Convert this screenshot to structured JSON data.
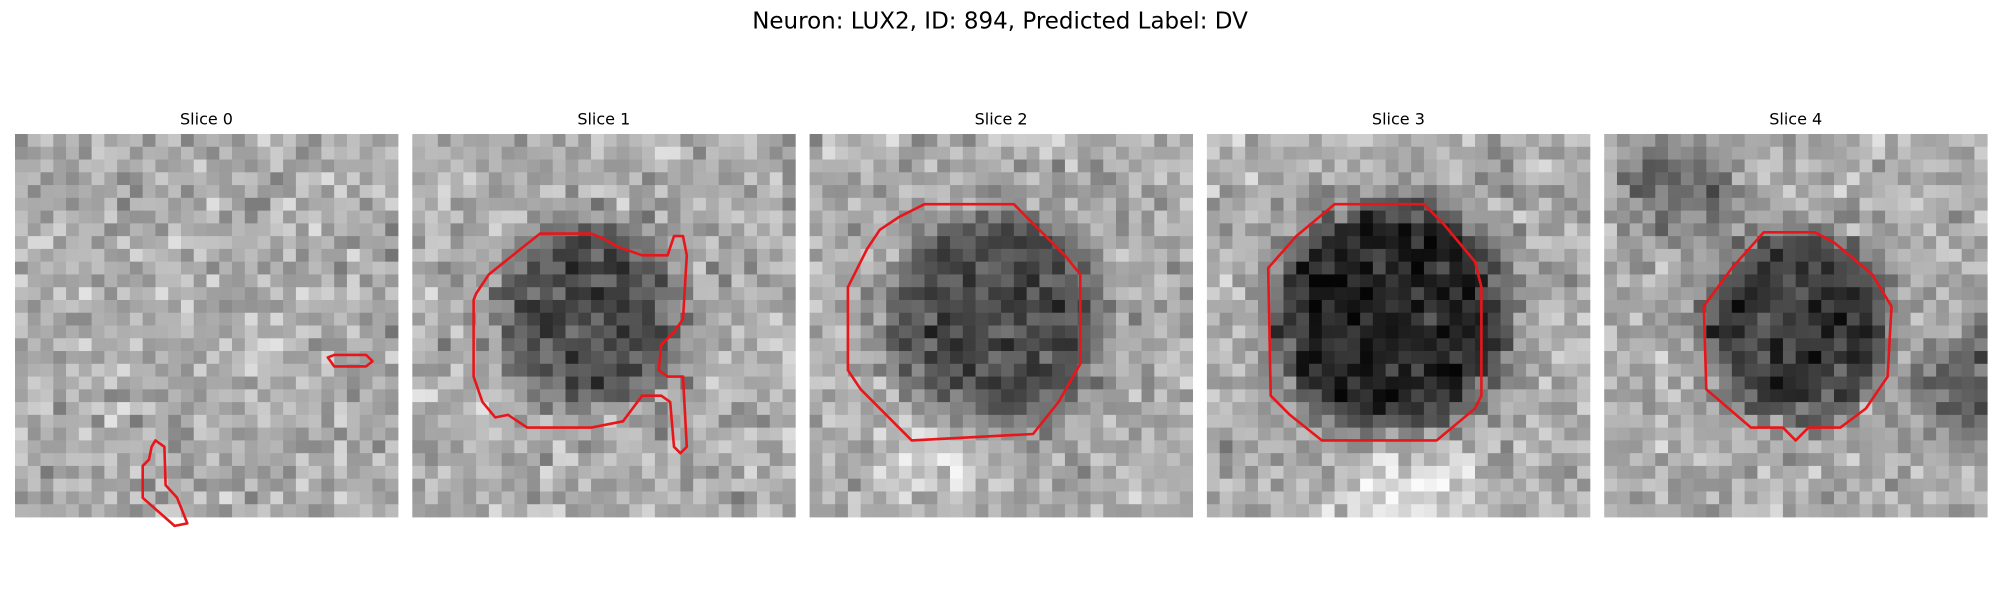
{
  "title": "Neuron: LUX2, ID: 894, Predicted Label: DV",
  "panels": [
    {
      "title": "Slice 0"
    },
    {
      "title": "Slice 1"
    },
    {
      "title": "Slice 2"
    },
    {
      "title": "Slice 3"
    },
    {
      "title": "Slice 4"
    }
  ]
}
